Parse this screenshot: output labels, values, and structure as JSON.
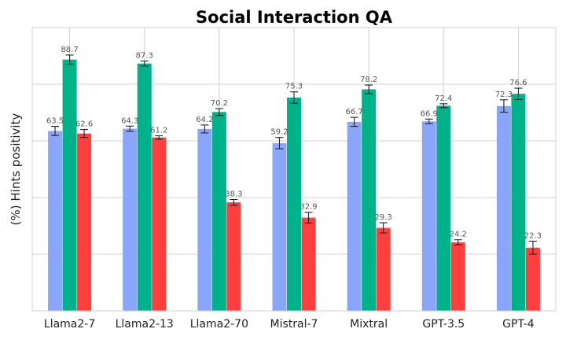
{
  "chart_data": {
    "type": "bar",
    "title": "Social Interaction QA",
    "xlabel": "",
    "ylabel": "(%) Hints positivity",
    "ylim": [
      0,
      100
    ],
    "grid": true,
    "categories": [
      "Llama2-7",
      "Llama2-13",
      "Llama2-70",
      "Mistral-7",
      "Mixtral",
      "GPT-3.5",
      "GPT-4"
    ],
    "series": [
      {
        "name": "series-1",
        "color": "#8aa6fb",
        "values": [
          63.5,
          64.3,
          64.2,
          59.2,
          66.7,
          66.9,
          72.3
        ],
        "errors": [
          1.6,
          0.9,
          1.4,
          2.0,
          1.6,
          0.8,
          2.2
        ]
      },
      {
        "name": "series-2",
        "color": "#00b28a",
        "values": [
          88.7,
          87.3,
          70.2,
          75.3,
          78.2,
          72.4,
          76.6
        ],
        "errors": [
          1.6,
          0.9,
          1.2,
          2.0,
          1.5,
          0.7,
          2.0
        ]
      },
      {
        "name": "series-3",
        "color": "#ff3e3e",
        "values": [
          62.6,
          61.2,
          38.3,
          32.9,
          29.3,
          24.2,
          22.3
        ],
        "errors": [
          1.4,
          0.6,
          1.0,
          1.9,
          1.8,
          0.9,
          2.3
        ]
      }
    ]
  }
}
